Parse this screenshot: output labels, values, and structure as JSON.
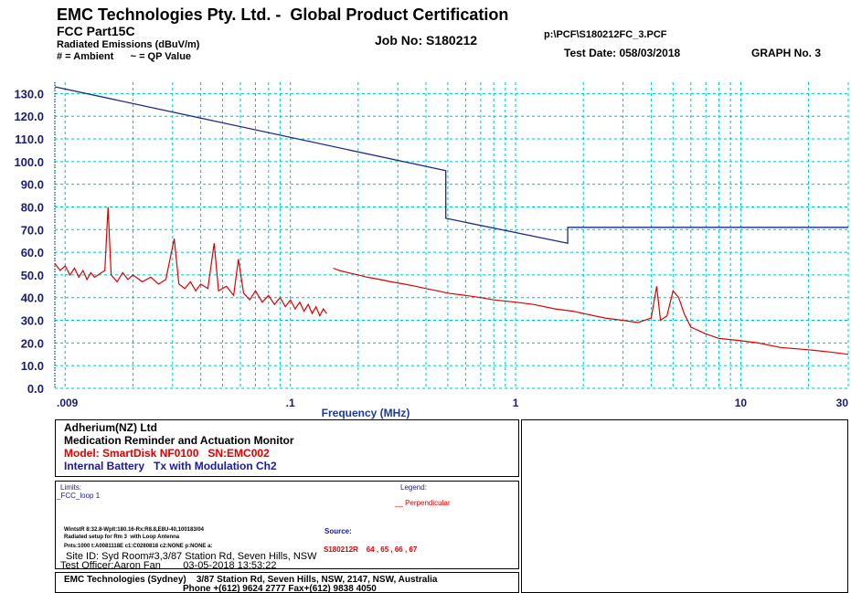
{
  "header": {
    "title": "EMC Technologies Pty. Ltd. -  Global Product Certification",
    "standard": "FCC Part15C",
    "measurement": "Radiated Emissions (dBuV/m)",
    "key": "# = Ambient      ~ = QP Value",
    "job": "Job No: S180212",
    "file": "p:\\PCF\\S180212FC_3.PCF",
    "date": "Test Date: 058/03/2018",
    "graph": "GRAPH No. 3"
  },
  "chart_data": {
    "type": "line",
    "xlabel": "Frequency (MHz)",
    "log_x": true,
    "grid": true,
    "grid_color": "#00c0c8",
    "xlim": [
      0.009,
      30
    ],
    "ylim": [
      0,
      135
    ],
    "xticks": [
      {
        "value": 0.009,
        "label": ".009"
      },
      {
        "value": 0.1,
        "label": ".1"
      },
      1,
      10,
      30
    ],
    "xgrid": [
      0.01,
      0.02,
      0.03,
      0.04,
      0.05,
      0.06,
      0.07,
      0.08,
      0.09,
      0.2,
      0.3,
      0.4,
      0.5,
      0.6,
      0.7,
      0.8,
      0.9,
      2,
      3,
      4,
      5,
      6,
      7,
      8,
      9,
      20
    ],
    "yticks": [
      {
        "value": 0,
        "label": "0.0"
      },
      {
        "value": 10,
        "label": "10.0"
      },
      {
        "value": 20,
        "label": "20.0"
      },
      {
        "value": 30,
        "label": "30.0"
      },
      {
        "value": 40,
        "label": "40.0"
      },
      {
        "value": 50,
        "label": "50.0"
      },
      {
        "value": 60,
        "label": "60.0"
      },
      {
        "value": 70,
        "label": "70.0"
      },
      {
        "value": 80,
        "label": "80.0"
      },
      {
        "value": 90,
        "label": "90.0"
      },
      {
        "value": 100,
        "label": "100.0"
      },
      {
        "value": 110,
        "label": "110.0"
      },
      {
        "value": 120,
        "label": "120.0"
      },
      {
        "value": 130,
        "label": "130.0"
      }
    ],
    "series": [
      {
        "color": "#1a2a8a",
        "x": [
          0.009,
          0.49,
          0.49,
          1.705,
          1.705,
          30
        ],
        "values": [
          133,
          96,
          75,
          64,
          71,
          71
        ]
      },
      {
        "color": "#e00000",
        "x": [
          0.009,
          0.0095,
          0.01,
          0.0105,
          0.011,
          0.0115,
          0.012,
          0.0125,
          0.013,
          0.0135,
          0.014,
          0.015,
          0.0155,
          0.016,
          0.017,
          0.018,
          0.019,
          0.02,
          0.022,
          0.024,
          0.026,
          0.028,
          0.0305,
          0.032,
          0.034,
          0.036,
          0.038,
          0.04,
          0.043,
          0.0459,
          0.048,
          0.052,
          0.056,
          0.0588,
          0.062,
          0.066,
          0.07,
          0.075,
          0.08,
          0.085,
          0.09,
          0.095,
          0.1,
          0.105,
          0.11,
          0.115,
          0.12,
          0.125,
          0.13,
          0.135,
          0.14,
          0.145,
          0.15,
          0.155,
          0.165,
          0.18,
          0.2,
          0.22,
          0.25,
          0.28,
          0.32,
          0.36,
          0.4,
          0.45,
          0.5,
          0.6,
          0.7,
          0.8,
          1,
          1.2,
          1.5,
          1.8,
          2,
          2.5,
          3,
          3.5,
          4,
          4.23,
          4.4,
          4.7,
          5,
          5.3,
          5.6,
          6,
          7,
          8,
          10,
          12,
          15,
          20,
          25,
          30
        ],
        "values": [
          55,
          52,
          54,
          50,
          53,
          49,
          52,
          48,
          51,
          49,
          50,
          52,
          80,
          50,
          47,
          51,
          48,
          50,
          47,
          49,
          46,
          48,
          66,
          46,
          44,
          47,
          43,
          46,
          44,
          64,
          43,
          45,
          41,
          57,
          42,
          39,
          43,
          38,
          41,
          37,
          40,
          36,
          39,
          35,
          38,
          34,
          37,
          33,
          36,
          32,
          35,
          33,
          null,
          53,
          52,
          51,
          50,
          49,
          48,
          47,
          46,
          45,
          44,
          43,
          42,
          41,
          40,
          39,
          38,
          37,
          35,
          34,
          33,
          31,
          30,
          29,
          31,
          45,
          30,
          32,
          43,
          40,
          33,
          27,
          24,
          22,
          21,
          20,
          18,
          17,
          16,
          15
        ]
      }
    ]
  },
  "info": {
    "client": "Adherium(NZ) Ltd",
    "product": "Medication Reminder and Actuation Monitor",
    "model": "Model: SmartDisk NF0100   SN:EMC002",
    "config": "Internal Battery   Tx with Modulation Ch2",
    "limits_title": "Limits:",
    "limit_name": "_FCC_loop 1",
    "legend_title": "Legend:",
    "legend_entry": "__ Perpendicular",
    "settings": "WintstR 8:32.8-Wplt:180.16-Rx:R8.8,E8U-40,100183/04",
    "setup": "Radiated setup for Rm 3  with Loop Antenna",
    "points": "Pnts:1000 t:A0081118E c1:C0280818 c2:NONE p:NONE a:",
    "source_title": "Source:",
    "source": "S180212R    64 , 65 , 66 , 67",
    "site": "Site ID: Syd Room#3,3/87 Station Rd, Seven Hills, NSW",
    "officer": "Test Officer:Aaron Fan        03-05-2018 13:53:22",
    "company": "EMC Technologies (Sydney)    3/87 Station Rd, Seven Hills, NSW, 2147, NSW, Australia",
    "phone": "Phone +(612) 9624 2777 Fax+(612) 9838 4050"
  }
}
